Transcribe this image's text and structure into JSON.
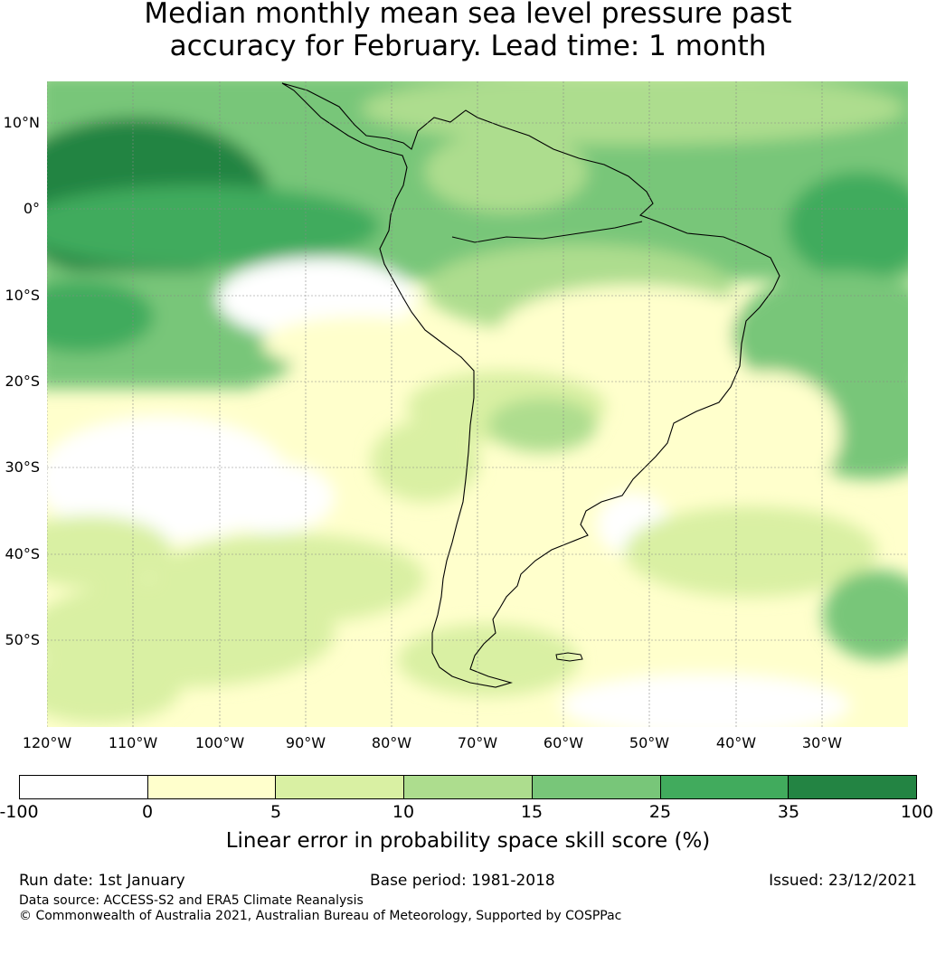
{
  "title": {
    "line1": "Median monthly mean sea level pressure past",
    "line2": "accuracy for February. Lead time: 1 month"
  },
  "map": {
    "lat_labels": [
      "10°N",
      "0°",
      "10°S",
      "20°S",
      "30°S",
      "40°S",
      "50°S"
    ],
    "lon_labels": [
      "120°W",
      "110°W",
      "100°W",
      "90°W",
      "80°W",
      "70°W",
      "60°W",
      "50°W",
      "40°W",
      "30°W"
    ],
    "region": "South America"
  },
  "colorbar": {
    "ticks": [
      "-100",
      "0",
      "5",
      "10",
      "15",
      "25",
      "35",
      "100"
    ],
    "colors": [
      "#ffffff",
      "#ffffcc",
      "#d9f0a3",
      "#addd8e",
      "#78c679",
      "#41ab5d",
      "#238443"
    ],
    "label": "Linear error in probability space skill score (%)"
  },
  "footer": {
    "run_date": "Run date: 1st January",
    "base_period": "Base period: 1981-2018",
    "issued": "Issued: 23/12/2021",
    "data_source": "Data source: ACCESS-S2 and ERA5 Climate Reanalysis",
    "copyright": "© Commonwealth of Australia 2021, Australian Bureau of Meteorology, Supported by COSPPac"
  }
}
